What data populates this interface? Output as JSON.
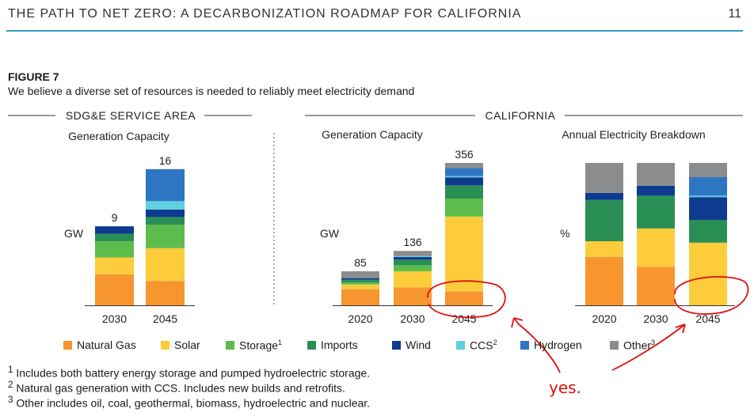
{
  "header": {
    "title": "THE PATH TO NET ZERO: A DECARBONIZATION ROADMAP FOR CALIFORNIA",
    "page_number": "11"
  },
  "figure": {
    "label": "FIGURE 7",
    "caption": "We believe a diverse set of resources is needed to reliably meet electricity demand"
  },
  "colors": {
    "Natural Gas": "#f7962f",
    "Solar": "#fccc3b",
    "Storage": "#5dbd4c",
    "Imports": "#2a8f55",
    "Wind": "#0e3b8f",
    "CCS": "#5fd0e0",
    "Hydrogen": "#2e75c4",
    "Other": "#8a8c8e",
    "rule": "#2f9ec4",
    "annotation": "#e01010"
  },
  "legend": [
    {
      "key": "Natural Gas",
      "label": "Natural Gas"
    },
    {
      "key": "Solar",
      "label": "Solar"
    },
    {
      "key": "Storage",
      "label": "Storage",
      "sup": "1"
    },
    {
      "key": "Imports",
      "label": "Imports"
    },
    {
      "key": "Wind",
      "label": "Wind"
    },
    {
      "key": "CCS",
      "label": "CCS",
      "sup": "2"
    },
    {
      "key": "Hydrogen",
      "label": "Hydrogen"
    },
    {
      "key": "Other",
      "label": "Other",
      "sup": "3"
    }
  ],
  "groups": [
    {
      "title": "SDG&E SERVICE AREA"
    },
    {
      "title": "CALIFORNIA"
    }
  ],
  "chart_data": [
    {
      "type": "bar",
      "stacked": true,
      "region": "SDG&E SERVICE AREA",
      "title": "Generation Capacity",
      "ylabel": "GW",
      "categories": [
        "2030",
        "2045"
      ],
      "totals": [
        "9",
        "16"
      ],
      "series": [
        {
          "name": "Natural Gas",
          "values": [
            3.7,
            2.9
          ]
        },
        {
          "name": "Solar",
          "values": [
            2.0,
            3.9
          ]
        },
        {
          "name": "Storage",
          "values": [
            1.9,
            2.8
          ]
        },
        {
          "name": "Imports",
          "values": [
            0.9,
            0.9
          ]
        },
        {
          "name": "Wind",
          "values": [
            0.9,
            0.9
          ]
        },
        {
          "name": "CCS",
          "values": [
            0,
            1.0
          ]
        },
        {
          "name": "Hydrogen",
          "values": [
            0,
            3.8
          ]
        }
      ]
    },
    {
      "type": "bar",
      "stacked": true,
      "region": "CALIFORNIA",
      "title": "Generation Capacity",
      "ylabel": "GW",
      "categories": [
        "2020",
        "2030",
        "2045"
      ],
      "totals": [
        "85",
        "136",
        "356"
      ],
      "series": [
        {
          "name": "Natural Gas",
          "values": [
            40,
            45,
            35
          ]
        },
        {
          "name": "Solar",
          "values": [
            12,
            40,
            187
          ]
        },
        {
          "name": "Storage",
          "values": [
            5,
            15,
            45
          ]
        },
        {
          "name": "Imports",
          "values": [
            7,
            14,
            33
          ]
        },
        {
          "name": "Wind",
          "values": [
            4,
            7,
            20
          ]
        },
        {
          "name": "CCS",
          "values": [
            0,
            2,
            3
          ]
        },
        {
          "name": "Hydrogen",
          "values": [
            0,
            0,
            20
          ]
        },
        {
          "name": "Other",
          "values": [
            17,
            13,
            13
          ]
        }
      ]
    },
    {
      "type": "bar",
      "stacked": true,
      "region": "CALIFORNIA",
      "title": "Annual Electricity Breakdown",
      "ylabel": "%",
      "categories": [
        "2020",
        "2030",
        "2045"
      ],
      "totals": [
        "",
        "",
        ""
      ],
      "series": [
        {
          "name": "Natural Gas",
          "values": [
            34,
            27,
            0
          ]
        },
        {
          "name": "Solar",
          "values": [
            11,
            27,
            44
          ]
        },
        {
          "name": "Imports",
          "values": [
            29,
            23,
            16
          ]
        },
        {
          "name": "Wind",
          "values": [
            5,
            7,
            16
          ]
        },
        {
          "name": "CCS",
          "values": [
            0,
            0,
            1
          ]
        },
        {
          "name": "Hydrogen",
          "values": [
            0,
            0,
            13
          ]
        },
        {
          "name": "Other",
          "values": [
            21,
            16,
            10
          ]
        }
      ]
    }
  ],
  "footnotes": [
    {
      "sup": "1",
      "text": "Includes both battery energy storage and pumped hydroelectric storage."
    },
    {
      "sup": "2",
      "text": "Natural gas generation with CCS. Includes new builds and retrofits."
    },
    {
      "sup": "3",
      "text": "Other includes oil, coal, geothermal, biomass, hydroelectric and nuclear."
    }
  ],
  "annotation": {
    "text": "yes."
  }
}
